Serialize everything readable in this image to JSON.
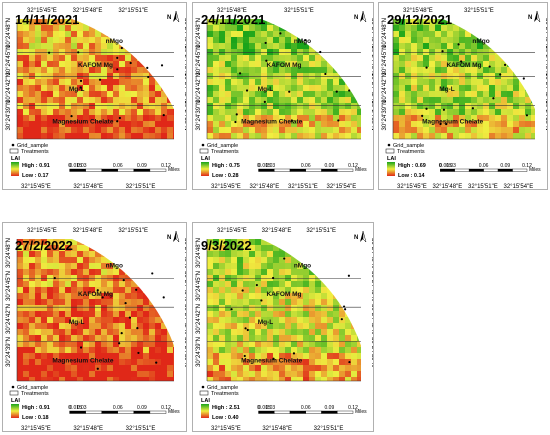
{
  "panels": [
    {
      "date": "14/11/2021",
      "lai_high": "High : 0.91",
      "lai_low": "Low : 0.17",
      "heat": 0.72,
      "top_ticks": [
        "32°15'45\"E",
        "32°15'48\"E",
        "32°15'51\"E"
      ],
      "bottom_ticks": [
        "32°15'45\"E",
        "32°15'48\"E",
        "32°15'51\"E"
      ],
      "lat_ticks": [
        "30°24'48\"N",
        "30°24'45\"N",
        "30°24'42\"N",
        "30°24'39\"N"
      ]
    },
    {
      "date": "24/11/2021",
      "lai_high": "High : 0.75",
      "lai_low": "Low : 0.28",
      "heat": 0.32,
      "top_ticks": [
        "32°15'48\"E",
        "32°15'51\"E"
      ],
      "bottom_ticks": [
        "32°15'45\"E",
        "32°15'48\"E",
        "32°15'51\"E",
        "32°15'54\"E"
      ],
      "lat_ticks": [
        "30°24'48\"N",
        "30°24'45\"N",
        "30°24'42\"N",
        "30°24'39\"N"
      ]
    },
    {
      "date": "29/12/2021",
      "lai_high": "High : 0.69",
      "lai_low": "Low : 0.14",
      "heat": 0.35,
      "top_ticks": [
        "32°15'48\"E",
        "32°15'51\"E"
      ],
      "bottom_ticks": [
        "32°15'45\"E",
        "32°15'48\"E",
        "32°15'51\"E",
        "32°15'54\"E"
      ],
      "lat_ticks": [
        "30°24'48\"N",
        "30°24'45\"N",
        "30°24'42\"N",
        "30°24'39\"N"
      ]
    },
    {
      "date": "27/2/2022",
      "lai_high": "High : 0.91",
      "lai_low": "Low : 0.18",
      "heat": 0.8,
      "top_ticks": [
        "32°15'45\"E",
        "32°15'48\"E",
        "32°15'51\"E"
      ],
      "bottom_ticks": [
        "32°15'45\"E",
        "32°15'48\"E",
        "32°15'51\"E"
      ],
      "lat_ticks": [
        "30°24'48\"N",
        "30°24'45\"N",
        "30°24'42\"N",
        "30°24'39\"N"
      ]
    },
    {
      "date": "9/3/2022",
      "lai_high": "High : 2.51",
      "lai_low": "Low : 0.40",
      "heat": 0.45,
      "top_ticks": [
        "32°15'45\"E",
        "32°15'48\"E",
        "32°15'51\"E"
      ],
      "bottom_ticks": [
        "32°15'45\"E",
        "32°15'48\"E",
        "32°15'51\"E"
      ],
      "lat_ticks": [
        "30°24'48\"N",
        "30°24'45\"N",
        "30°24'42\"N",
        "30°24'39\"N"
      ]
    }
  ],
  "treatments": [
    "nMgo",
    "KAFOM Mg",
    "Mg-L",
    "Magnesium Chelate"
  ],
  "legend": {
    "grid_sample": "Grid_sample",
    "treatments": "Treatments",
    "lai": "LAI"
  },
  "scale": {
    "ticks": [
      "0",
      "0.015",
      "0.03",
      "0.06",
      "0.09",
      "0.12"
    ],
    "unit": "Miles"
  },
  "north": "N",
  "colors": {
    "high": "#1aa41a",
    "mid": "#f0ee40",
    "low": "#e02818"
  }
}
